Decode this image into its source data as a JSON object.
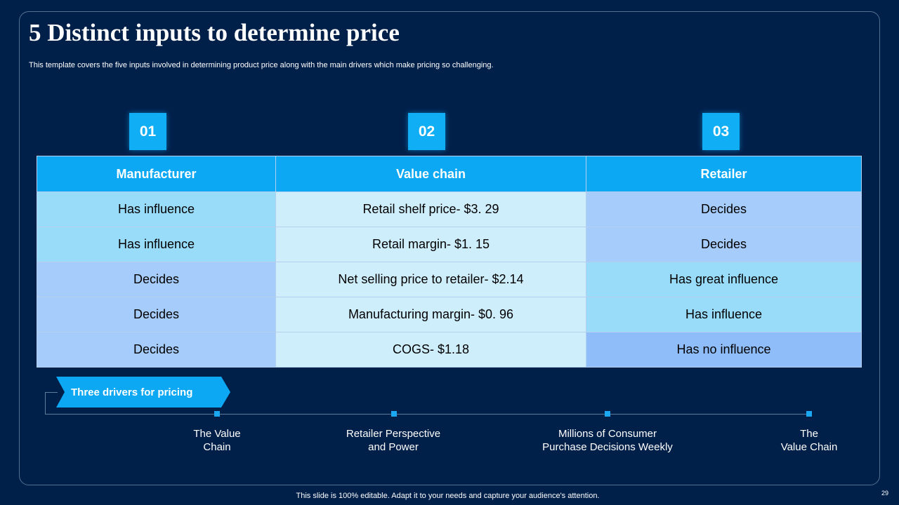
{
  "slide": {
    "title": "5 Distinct inputs to determine price",
    "subtitle": "This template covers the five  inputs involved in determining product price along with the main drivers which make pricing so challenging."
  },
  "badges": [
    "01",
    "02",
    "03"
  ],
  "table": {
    "headers": [
      "Manufacturer",
      "Value chain",
      "Retailer"
    ],
    "rows": [
      [
        "Has influence",
        "Retail shelf price- $3. 29",
        "Decides"
      ],
      [
        "Has influence",
        "Retail margin- $1. 15",
        "Decides"
      ],
      [
        "Decides",
        "Net selling price to retailer- $2.14",
        "Has great influence"
      ],
      [
        "Decides",
        "Manufacturing margin- $0. 96",
        "Has influence"
      ],
      [
        "Decides",
        "COGS- $1.18",
        "Has no influence"
      ]
    ]
  },
  "drivers": {
    "label": "Three drivers for pricing",
    "items": [
      "The Value\nChain",
      "Retailer Perspective\nand Power",
      "Millions of Consumer\nPurchase Decisions Weekly",
      "The\nValue Chain"
    ]
  },
  "footer": {
    "note": "This slide is 100% editable. Adapt it to your needs and capture your audience's attention.",
    "page_number": "29"
  },
  "colors": {
    "background": "#00204a",
    "accent": "#0ca8f4",
    "cell_light": "#99dcfa",
    "cell_pale": "#cfeefc",
    "cell_mid": "#a6ccfb",
    "cell_deep": "#8fbdfa"
  }
}
